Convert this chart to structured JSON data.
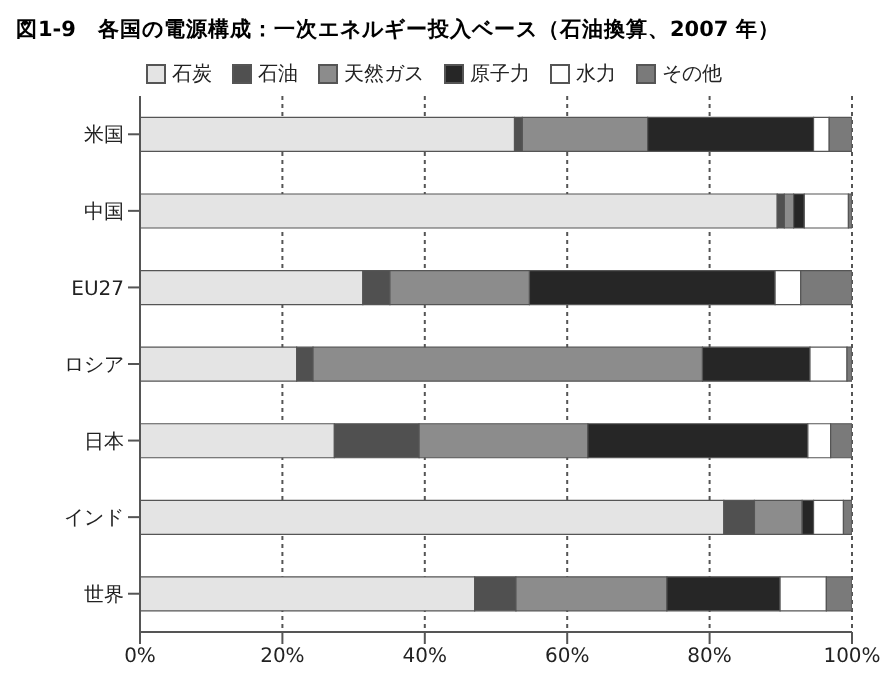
{
  "chart_data": {
    "type": "bar",
    "orientation": "horizontal",
    "stacked": true,
    "title": "図1-9　各国の電源構成：一次エネルギー投入ベース（石油換算、2007 年）",
    "categories": [
      "米国",
      "中国",
      "EU27",
      "ロシア",
      "日本",
      "インド",
      "世界"
    ],
    "series": [
      {
        "name": "石炭",
        "color": "#e4e4e4",
        "values": [
          52.6,
          89.5,
          31.3,
          22.0,
          27.3,
          82.0,
          47.0
        ]
      },
      {
        "name": "石油",
        "color": "#505050",
        "values": [
          1.1,
          1.0,
          3.8,
          2.3,
          11.9,
          4.3,
          5.8
        ]
      },
      {
        "name": "天然ガス",
        "color": "#8c8c8c",
        "values": [
          17.6,
          1.3,
          19.6,
          54.7,
          23.7,
          6.7,
          21.2
        ]
      },
      {
        "name": "原子力",
        "color": "#262626",
        "values": [
          23.3,
          1.5,
          34.5,
          15.1,
          30.9,
          1.6,
          15.9
        ]
      },
      {
        "name": "水力",
        "color": "#ffffff",
        "values": [
          2.2,
          6.2,
          3.6,
          5.2,
          3.2,
          4.2,
          6.5
        ]
      },
      {
        "name": "その他",
        "color": "#7a7a7a",
        "values": [
          3.2,
          0.5,
          7.2,
          0.7,
          3.0,
          1.2,
          3.6
        ]
      }
    ],
    "xlim": [
      0,
      100
    ],
    "xticks": [
      {
        "value": 0,
        "label": "0%"
      },
      {
        "value": 20,
        "label": "20%"
      },
      {
        "value": 40,
        "label": "40%"
      },
      {
        "value": 60,
        "label": "60%"
      },
      {
        "value": 80,
        "label": "80%"
      },
      {
        "value": 100,
        "label": "100%"
      }
    ],
    "grid": "x",
    "legend": "top"
  }
}
